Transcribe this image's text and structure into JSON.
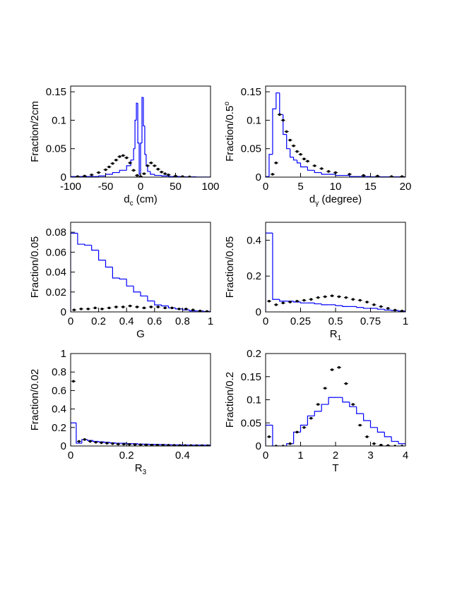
{
  "chart_data": [
    {
      "type": "histogram",
      "ylabel": [
        {
          "text": "Fraction/2cm"
        }
      ],
      "xlabel": [
        {
          "text": "d"
        },
        {
          "text": "c",
          "sub": true
        },
        {
          "text": " (cm)"
        }
      ],
      "xlim": [
        -100,
        100
      ],
      "xticks": [
        -100,
        -50,
        0,
        50,
        100
      ],
      "ylim": [
        0,
        0.16
      ],
      "yticks": [
        0,
        0.05,
        0.1,
        0.15
      ],
      "bins": [
        -100,
        -80,
        -60,
        -50,
        -40,
        -30,
        -20,
        -14,
        -10,
        -8,
        -6,
        -4,
        -2,
        0,
        2,
        4,
        6,
        8,
        10,
        14,
        20,
        30,
        40,
        60,
        80,
        100
      ],
      "series": [
        {
          "color": "#0000ff",
          "values": [
            0.001,
            0.001,
            0.002,
            0.005,
            0.008,
            0.012,
            0.02,
            0.03,
            0.05,
            0.1,
            0.13,
            0.06,
            0.005,
            0.06,
            0.14,
            0.09,
            0.04,
            0.02,
            0.01,
            0.005,
            0.003,
            0.002,
            0.001,
            0.0005,
            0.0002
          ]
        }
      ],
      "points": {
        "color": "#000000",
        "x": [
          -90,
          -80,
          -70,
          -60,
          -50,
          -45,
          -40,
          -35,
          -30,
          -25,
          -20,
          -15,
          -10,
          -5,
          0,
          5,
          10,
          15,
          20,
          25,
          30,
          35,
          40,
          50,
          60,
          70
        ],
        "values": [
          0.001,
          0.002,
          0.004,
          0.008,
          0.013,
          0.018,
          0.024,
          0.03,
          0.036,
          0.038,
          0.034,
          0.025,
          0.012,
          0.003,
          0.001,
          0.006,
          0.02,
          0.025,
          0.02,
          0.014,
          0.009,
          0.006,
          0.004,
          0.002,
          0.001,
          0.0005
        ]
      }
    },
    {
      "type": "histogram",
      "ylabel": [
        {
          "text": "Fraction/0.5"
        },
        {
          "text": "o",
          "sup": true
        }
      ],
      "xlabel": [
        {
          "text": "d"
        },
        {
          "text": "γ",
          "sub": true
        },
        {
          "text": " (degree)"
        }
      ],
      "xlim": [
        0,
        20
      ],
      "xticks": [
        0,
        5,
        10,
        15,
        20
      ],
      "ylim": [
        0,
        0.16
      ],
      "yticks": [
        0,
        0.05,
        0.1,
        0.15
      ],
      "bins": [
        0,
        0.5,
        1,
        1.5,
        2,
        2.5,
        3,
        3.5,
        4,
        4.5,
        5,
        6,
        7,
        8,
        10,
        12,
        15,
        20
      ],
      "series": [
        {
          "color": "#0000ff",
          "values": [
            0.001,
            0.04,
            0.12,
            0.148,
            0.11,
            0.075,
            0.05,
            0.035,
            0.03,
            0.025,
            0.018,
            0.012,
            0.008,
            0.005,
            0.003,
            0.001,
            0.0005
          ]
        }
      ],
      "points": {
        "color": "#000000",
        "x": [
          1,
          1.5,
          2,
          2.5,
          3,
          3.5,
          4,
          4.5,
          5,
          5.5,
          6,
          7,
          8,
          9,
          10,
          12,
          14,
          16,
          18,
          19.5
        ],
        "values": [
          0.005,
          0.025,
          0.11,
          0.1,
          0.08,
          0.065,
          0.055,
          0.045,
          0.04,
          0.032,
          0.028,
          0.02,
          0.015,
          0.01,
          0.008,
          0.005,
          0.003,
          0.002,
          0.001,
          0.001
        ]
      }
    },
    {
      "type": "histogram",
      "ylabel": [
        {
          "text": "Fraction/0.05"
        }
      ],
      "xlabel": [
        {
          "text": "G"
        }
      ],
      "xlim": [
        0,
        1
      ],
      "xticks": [
        0,
        0.2,
        0.4,
        0.6,
        0.8,
        1
      ],
      "ylim": [
        0,
        0.09
      ],
      "yticks": [
        0,
        0.02,
        0.04,
        0.06,
        0.08
      ],
      "bins": [
        0,
        0.05,
        0.1,
        0.15,
        0.2,
        0.25,
        0.3,
        0.35,
        0.4,
        0.45,
        0.5,
        0.55,
        0.6,
        0.65,
        0.7,
        0.75,
        0.8,
        0.85,
        0.9,
        0.95,
        1
      ],
      "series": [
        {
          "color": "#0000ff",
          "values": [
            0.079,
            0.068,
            0.067,
            0.062,
            0.052,
            0.045,
            0.034,
            0.033,
            0.026,
            0.02,
            0.016,
            0.011,
            0.007,
            0.006,
            0.004,
            0.003,
            0.002,
            0.001,
            0.001,
            0.0005
          ]
        }
      ],
      "points": {
        "color": "#000000",
        "x": [
          0.025,
          0.075,
          0.125,
          0.175,
          0.225,
          0.275,
          0.325,
          0.375,
          0.425,
          0.475,
          0.525,
          0.575,
          0.625,
          0.675,
          0.725,
          0.775,
          0.825,
          0.875,
          0.925,
          0.975
        ],
        "values": [
          0.002,
          0.003,
          0.003,
          0.004,
          0.003,
          0.004,
          0.005,
          0.005,
          0.006,
          0.005,
          0.004,
          0.005,
          0.005,
          0.004,
          0.004,
          0.003,
          0.003,
          0.002,
          0.001,
          0.0005
        ]
      }
    },
    {
      "type": "histogram",
      "ylabel": [
        {
          "text": "Fraction/0.05"
        }
      ],
      "xlabel": [
        {
          "text": "R"
        },
        {
          "text": "1",
          "sub": true
        }
      ],
      "xlim": [
        0,
        1
      ],
      "xticks": [
        0,
        0.25,
        0.5,
        0.75,
        1
      ],
      "ylim": [
        0,
        0.5
      ],
      "yticks": [
        0,
        0.2,
        0.4
      ],
      "bins": [
        0,
        0.05,
        0.1,
        0.15,
        0.2,
        0.25,
        0.3,
        0.35,
        0.4,
        0.45,
        0.5,
        0.55,
        0.6,
        0.65,
        0.7,
        0.75,
        0.8,
        0.85,
        0.9,
        0.95,
        1
      ],
      "series": [
        {
          "color": "#0000ff",
          "values": [
            0.44,
            0.07,
            0.06,
            0.06,
            0.055,
            0.05,
            0.05,
            0.045,
            0.04,
            0.04,
            0.035,
            0.03,
            0.03,
            0.025,
            0.02,
            0.02,
            0.015,
            0.01,
            0.008,
            0.005
          ]
        }
      ],
      "points": {
        "color": "#000000",
        "x": [
          0.025,
          0.075,
          0.125,
          0.175,
          0.225,
          0.275,
          0.325,
          0.375,
          0.425,
          0.475,
          0.525,
          0.575,
          0.625,
          0.675,
          0.725,
          0.775,
          0.825,
          0.875,
          0.925,
          0.975
        ],
        "values": [
          0.06,
          0.04,
          0.05,
          0.055,
          0.06,
          0.065,
          0.07,
          0.08,
          0.085,
          0.09,
          0.085,
          0.08,
          0.07,
          0.065,
          0.055,
          0.04,
          0.03,
          0.02,
          0.01,
          0.005
        ]
      }
    },
    {
      "type": "histogram",
      "ylabel": [
        {
          "text": "Fraction/0.02"
        }
      ],
      "xlabel": [
        {
          "text": "R"
        },
        {
          "text": "3",
          "sub": true
        }
      ],
      "xlim": [
        0,
        0.5
      ],
      "xticks": [
        0,
        0.2,
        0.4
      ],
      "ylim": [
        0,
        1
      ],
      "yticks": [
        0,
        0.2,
        0.4,
        0.6,
        0.8,
        1
      ],
      "bins": [
        0,
        0.02,
        0.04,
        0.06,
        0.08,
        0.1,
        0.12,
        0.14,
        0.16,
        0.18,
        0.2,
        0.22,
        0.24,
        0.26,
        0.28,
        0.3,
        0.32,
        0.34,
        0.36,
        0.38,
        0.4,
        0.42,
        0.44,
        0.46,
        0.48,
        0.5
      ],
      "series": [
        {
          "color": "#0000ff",
          "values": [
            0.25,
            0.03,
            0.07,
            0.06,
            0.05,
            0.045,
            0.04,
            0.035,
            0.03,
            0.03,
            0.025,
            0.025,
            0.02,
            0.02,
            0.018,
            0.016,
            0.015,
            0.014,
            0.013,
            0.012,
            0.011,
            0.01,
            0.01,
            0.01,
            0.01
          ]
        }
      ],
      "points": {
        "color": "#000000",
        "x": [
          0.01,
          0.03,
          0.05,
          0.07,
          0.09,
          0.11,
          0.13,
          0.15,
          0.17,
          0.19,
          0.21,
          0.23,
          0.25,
          0.27,
          0.29,
          0.31,
          0.33,
          0.35,
          0.37,
          0.39,
          0.41,
          0.43,
          0.45,
          0.47,
          0.49
        ],
        "values": [
          0.7,
          0.05,
          0.07,
          0.05,
          0.04,
          0.035,
          0.03,
          0.025,
          0.02,
          0.02,
          0.018,
          0.016,
          0.014,
          0.012,
          0.01,
          0.01,
          0.009,
          0.008,
          0.007,
          0.006,
          0.005,
          0.005,
          0.004,
          0.004,
          0.003
        ]
      }
    },
    {
      "type": "histogram",
      "ylabel": [
        {
          "text": "Fraction/0.2"
        }
      ],
      "xlabel": [
        {
          "text": "T"
        }
      ],
      "xlim": [
        0,
        4
      ],
      "xticks": [
        0,
        1,
        2,
        3,
        4
      ],
      "ylim": [
        0,
        0.2
      ],
      "yticks": [
        0,
        0.05,
        0.1,
        0.15,
        0.2
      ],
      "bins": [
        0,
        0.2,
        0.4,
        0.6,
        0.8,
        1,
        1.2,
        1.4,
        1.6,
        1.8,
        2,
        2.2,
        2.4,
        2.6,
        2.8,
        3,
        3.2,
        3.4,
        3.6,
        3.8,
        4
      ],
      "series": [
        {
          "color": "#0000ff",
          "values": [
            0.045,
            0,
            0,
            0.005,
            0.03,
            0.045,
            0.065,
            0.075,
            0.09,
            0.105,
            0.105,
            0.095,
            0.085,
            0.07,
            0.055,
            0.04,
            0.03,
            0.02,
            0.01,
            0.005
          ]
        }
      ],
      "points": {
        "color": "#000000",
        "x": [
          0.1,
          0.3,
          0.5,
          0.7,
          0.9,
          1.1,
          1.3,
          1.5,
          1.7,
          1.9,
          2.1,
          2.3,
          2.5,
          2.7,
          2.9,
          3.1,
          3.3,
          3.5,
          3.7,
          3.9
        ],
        "values": [
          0.02,
          0,
          0,
          0.005,
          0.03,
          0.04,
          0.06,
          0.09,
          0.125,
          0.165,
          0.17,
          0.135,
          0.09,
          0.045,
          0.02,
          0.005,
          0.002,
          0.001,
          0,
          0
        ]
      }
    }
  ]
}
